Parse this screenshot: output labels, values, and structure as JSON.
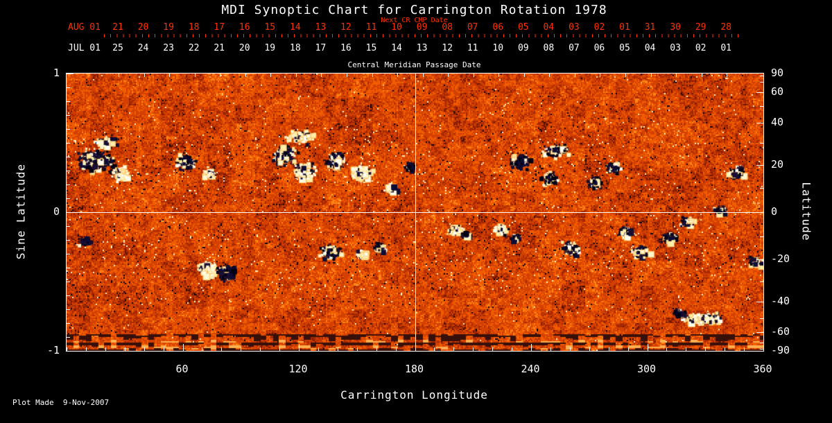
{
  "title": "MDI Synoptic Chart for Carrington Rotation 1978",
  "colors": {
    "background": "#000000",
    "text": "#ffffff",
    "accent_red": "#ff3200",
    "grid": "#ffffff"
  },
  "top_axis": {
    "next_cr_label": "Next CR CMP Date",
    "aug_prefix": "AUG 01",
    "aug_days": [
      "21",
      "20",
      "19",
      "18",
      "17",
      "16",
      "15",
      "14",
      "13",
      "12",
      "11",
      "10",
      "09",
      "08",
      "07",
      "06",
      "05",
      "04",
      "03",
      "02",
      "01",
      "31",
      "30",
      "29",
      "28"
    ],
    "jul_prefix": "JUL 01",
    "jul_days": [
      "25",
      "24",
      "23",
      "22",
      "21",
      "20",
      "19",
      "18",
      "17",
      "16",
      "15",
      "14",
      "13",
      "12",
      "11",
      "10",
      "09",
      "08",
      "07",
      "06",
      "05",
      "04",
      "03",
      "02",
      "01"
    ],
    "cmp_label": "Central Meridian Passage Date"
  },
  "footer": {
    "plot_made": "Plot Made  9-Nov-2007"
  },
  "chart_data": {
    "type": "heatmap",
    "title": "MDI Synoptic Chart for Carrington Rotation 1978",
    "xlabel": "Carrington Longitude",
    "ylabel_left": "Sine Latitude",
    "ylabel_right": "Latitude",
    "x_range": [
      0,
      360
    ],
    "x_ticks": [
      60,
      120,
      180,
      240,
      300,
      360
    ],
    "x_minor_step": 10,
    "y_left_range": [
      -1,
      1
    ],
    "y_left_ticks": [
      1,
      0,
      -1
    ],
    "y_left_minor_step": 0.1,
    "y_right_ticks_deg": [
      90,
      60,
      40,
      20,
      0,
      -20,
      -40,
      -60,
      -90
    ],
    "grid_lines": {
      "lon": 180,
      "sinlat": 0
    },
    "colormap_hint": [
      "#05051e",
      "#701600",
      "#a62800",
      "#d34000",
      "#f25c00",
      "#ff8518",
      "#ffb860",
      "#fff3c8"
    ],
    "active_regions": [
      [
        14,
        0.38,
        22,
        14,
        260,
        0.75
      ],
      [
        27,
        0.28,
        12,
        9,
        120,
        0.2
      ],
      [
        9,
        -0.2,
        8,
        6,
        50,
        0.8
      ],
      [
        61,
        0.37,
        14,
        10,
        150,
        0.8
      ],
      [
        73,
        0.28,
        8,
        6,
        60,
        0.25
      ],
      [
        112,
        0.42,
        16,
        12,
        180,
        0.7
      ],
      [
        122,
        0.3,
        14,
        10,
        160,
        0.35
      ],
      [
        138,
        0.38,
        12,
        10,
        140,
        0.75
      ],
      [
        152,
        0.29,
        13,
        10,
        160,
        0.2
      ],
      [
        167,
        0.18,
        8,
        6,
        60,
        0.3
      ],
      [
        177,
        0.33,
        7,
        5,
        50,
        0.8
      ],
      [
        72,
        -0.4,
        12,
        9,
        150,
        0.15
      ],
      [
        82,
        -0.43,
        12,
        9,
        160,
        0.85
      ],
      [
        136,
        -0.28,
        14,
        9,
        130,
        0.6
      ],
      [
        152,
        -0.3,
        8,
        6,
        60,
        0.3
      ],
      [
        161,
        -0.25,
        9,
        7,
        80,
        0.75
      ],
      [
        200,
        -0.12,
        9,
        6,
        90,
        0.3
      ],
      [
        206,
        -0.16,
        6,
        5,
        40,
        0.8
      ],
      [
        224,
        -0.12,
        9,
        7,
        90,
        0.35
      ],
      [
        231,
        -0.18,
        7,
        5,
        50,
        0.8
      ],
      [
        233,
        0.37,
        12,
        9,
        120,
        0.8
      ],
      [
        249,
        0.25,
        10,
        8,
        100,
        0.75
      ],
      [
        260,
        -0.25,
        12,
        8,
        120,
        0.6
      ],
      [
        272,
        0.22,
        9,
        7,
        80,
        0.8
      ],
      [
        282,
        0.33,
        9,
        7,
        80,
        0.75
      ],
      [
        288,
        -0.13,
        9,
        7,
        80,
        0.7
      ],
      [
        296,
        -0.28,
        11,
        8,
        110,
        0.45
      ],
      [
        311,
        -0.18,
        10,
        7,
        90,
        0.75
      ],
      [
        320,
        -0.06,
        8,
        6,
        60,
        0.8
      ],
      [
        337,
        0.02,
        8,
        6,
        60,
        0.75
      ],
      [
        327,
        -0.76,
        26,
        7,
        220,
        0.3
      ],
      [
        316,
        -0.72,
        8,
        5,
        50,
        0.8
      ],
      [
        120,
        0.55,
        18,
        8,
        80,
        0.25
      ],
      [
        20,
        0.52,
        14,
        8,
        60,
        0.3
      ],
      [
        252,
        0.45,
        16,
        10,
        90,
        0.65
      ],
      [
        345,
        0.3,
        10,
        8,
        70,
        0.7
      ],
      [
        355,
        -0.35,
        10,
        7,
        60,
        0.6
      ]
    ]
  }
}
